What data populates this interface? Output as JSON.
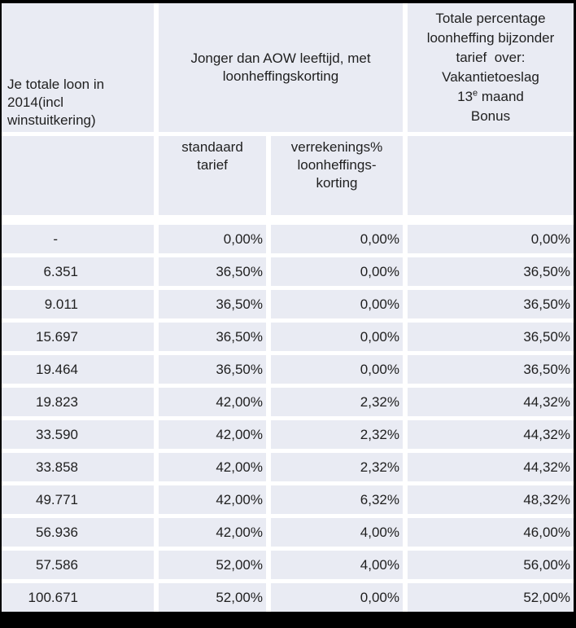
{
  "header": {
    "loon_title": "Je totale loon in\n2014(incl\nwinstuitkering)",
    "group_title": "Jonger dan AOW leeftijd, met\nloonheffingskorting",
    "standaard_title": "standaard\ntarief",
    "verrekening_title": "verrekenings%\nloonheffings-\nkorting",
    "totaal_lines": [
      "Totale percentage",
      "loonheffing bijzonder",
      "tarief  over:",
      "Vakantietoeslag"
    ],
    "totaal_sup_line": {
      "pre": "13",
      "sup": "e",
      "post": " maand"
    },
    "totaal_last_line": "Bonus"
  },
  "chart_data": {
    "type": "table",
    "title": "",
    "columns": [
      "Je totale loon in 2014(incl winstuitkering)",
      "Jonger dan AOW leeftijd, met loonheffingskorting - standaard tarief",
      "Jonger dan AOW leeftijd, met loonheffingskorting - verrekenings% loonheffings-korting",
      "Totale percentage loonheffing bijzonder tarief over: Vakantietoeslag 13e maand Bonus"
    ],
    "rows": [
      [
        "-",
        "0,00%",
        "0,00%",
        "0,00%"
      ],
      [
        "6.351",
        "36,50%",
        "0,00%",
        "36,50%"
      ],
      [
        "9.011",
        "36,50%",
        "0,00%",
        "36,50%"
      ],
      [
        "15.697",
        "36,50%",
        "0,00%",
        "36,50%"
      ],
      [
        "19.464",
        "36,50%",
        "0,00%",
        "36,50%"
      ],
      [
        "19.823",
        "42,00%",
        "2,32%",
        "44,32%"
      ],
      [
        "33.590",
        "42,00%",
        "2,32%",
        "44,32%"
      ],
      [
        "33.858",
        "42,00%",
        "2,32%",
        "44,32%"
      ],
      [
        "49.771",
        "42,00%",
        "6,32%",
        "48,32%"
      ],
      [
        "56.936",
        "42,00%",
        "4,00%",
        "46,00%"
      ],
      [
        "57.586",
        "52,00%",
        "4,00%",
        "56,00%"
      ],
      [
        "100.671",
        "52,00%",
        "0,00%",
        "52,00%"
      ]
    ]
  },
  "colors": {
    "cell_background": "#e9ebf3",
    "separator": "#ffffff",
    "border": "#000000",
    "text": "#1f1f1f"
  }
}
